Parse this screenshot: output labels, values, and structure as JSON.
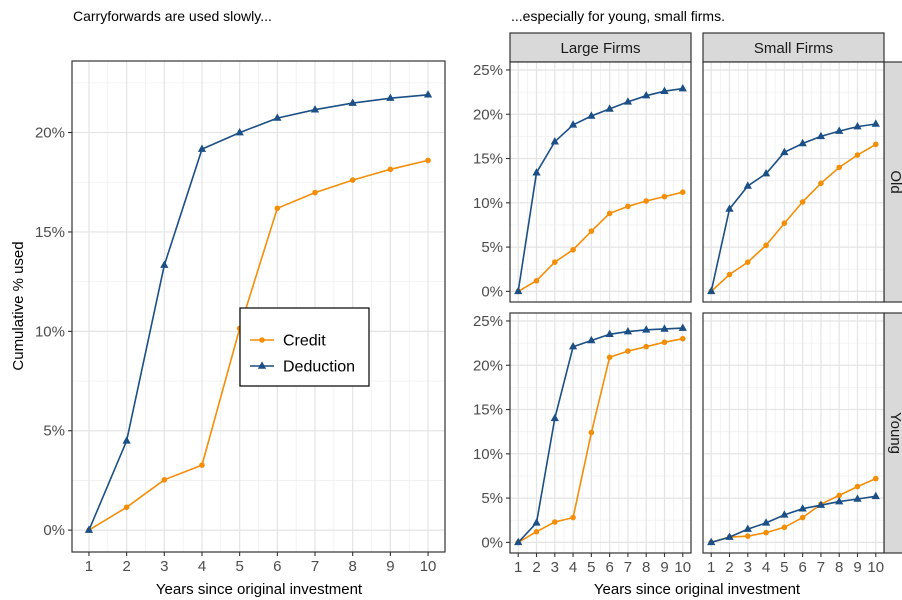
{
  "colors": {
    "credit": "#F28E08",
    "deduction": "#1B4F86",
    "strip_bg": "#D9D9D9"
  },
  "chart_data": [
    {
      "type": "line",
      "title": "Carryforwards are used slowly...",
      "xlabel": "Years since original investment",
      "ylabel": "Cumulative % used",
      "x": [
        1,
        2,
        3,
        4,
        5,
        6,
        7,
        8,
        9,
        10
      ],
      "xlim": [
        0.55,
        10.45
      ],
      "ylim": [
        -0.011,
        0.236
      ],
      "yticks": [
        0,
        0.05,
        0.1,
        0.15,
        0.2
      ],
      "ytick_labels": [
        "0%",
        "5%",
        "10%",
        "15%",
        "20%"
      ],
      "xtick_labels": [
        "1",
        "2",
        "3",
        "4",
        "5",
        "6",
        "7",
        "8",
        "9",
        "10"
      ],
      "legend_position": "center",
      "series": [
        {
          "name": "Credit",
          "values": [
            0,
            0.0115,
            0.0253,
            0.0327,
            0.1015,
            0.1619,
            0.1698,
            0.1761,
            0.1815,
            0.186
          ]
        },
        {
          "name": "Deduction",
          "values": [
            0,
            0.0449,
            0.1333,
            0.1917,
            0.2,
            0.2073,
            0.2115,
            0.2148,
            0.2173,
            0.219
          ]
        }
      ]
    },
    {
      "type": "line",
      "title": "...especially for young, small firms.",
      "xlabel": "Years since original investment",
      "x": [
        1,
        2,
        3,
        4,
        5,
        6,
        7,
        8,
        9,
        10
      ],
      "xlim": [
        0.55,
        10.45
      ],
      "ylim": [
        -0.012,
        0.259
      ],
      "yticks": [
        0,
        0.05,
        0.1,
        0.15,
        0.2,
        0.25
      ],
      "ytick_labels": [
        "0%",
        "5%",
        "10%",
        "15%",
        "20%",
        "25%"
      ],
      "xtick_labels": [
        "1",
        "2",
        "3",
        "4",
        "5",
        "6",
        "7",
        "8",
        "9",
        "10"
      ],
      "column_labels": [
        "Large Firms",
        "Small Firms"
      ],
      "row_labels": [
        "Old",
        "Young"
      ],
      "panels": [
        {
          "column": "Large Firms",
          "row": "Old",
          "series": [
            {
              "name": "Credit",
              "values": [
                0,
                0.012,
                0.033,
                0.047,
                0.068,
                0.088,
                0.096,
                0.102,
                0.107,
                0.112
              ]
            },
            {
              "name": "Deduction",
              "values": [
                0,
                0.134,
                0.169,
                0.188,
                0.198,
                0.206,
                0.214,
                0.221,
                0.226,
                0.229
              ]
            }
          ]
        },
        {
          "column": "Small Firms",
          "row": "Old",
          "series": [
            {
              "name": "Credit",
              "values": [
                0,
                0.019,
                0.033,
                0.052,
                0.077,
                0.101,
                0.122,
                0.14,
                0.154,
                0.166
              ]
            },
            {
              "name": "Deduction",
              "values": [
                0,
                0.093,
                0.119,
                0.133,
                0.157,
                0.167,
                0.175,
                0.181,
                0.186,
                0.189
              ]
            }
          ]
        },
        {
          "column": "Large Firms",
          "row": "Young",
          "series": [
            {
              "name": "Credit",
              "values": [
                0,
                0.012,
                0.023,
                0.028,
                0.124,
                0.209,
                0.216,
                0.221,
                0.226,
                0.23
              ]
            },
            {
              "name": "Deduction",
              "values": [
                0,
                0.022,
                0.14,
                0.221,
                0.228,
                0.235,
                0.238,
                0.24,
                0.241,
                0.242
              ]
            }
          ]
        },
        {
          "column": "Small Firms",
          "row": "Young",
          "series": [
            {
              "name": "Credit",
              "values": [
                0,
                0.006,
                0.007,
                0.011,
                0.017,
                0.028,
                0.043,
                0.053,
                0.063,
                0.072
              ]
            },
            {
              "name": "Deduction",
              "values": [
                0,
                0.006,
                0.015,
                0.022,
                0.031,
                0.038,
                0.042,
                0.046,
                0.049,
                0.052
              ]
            }
          ]
        }
      ]
    }
  ]
}
